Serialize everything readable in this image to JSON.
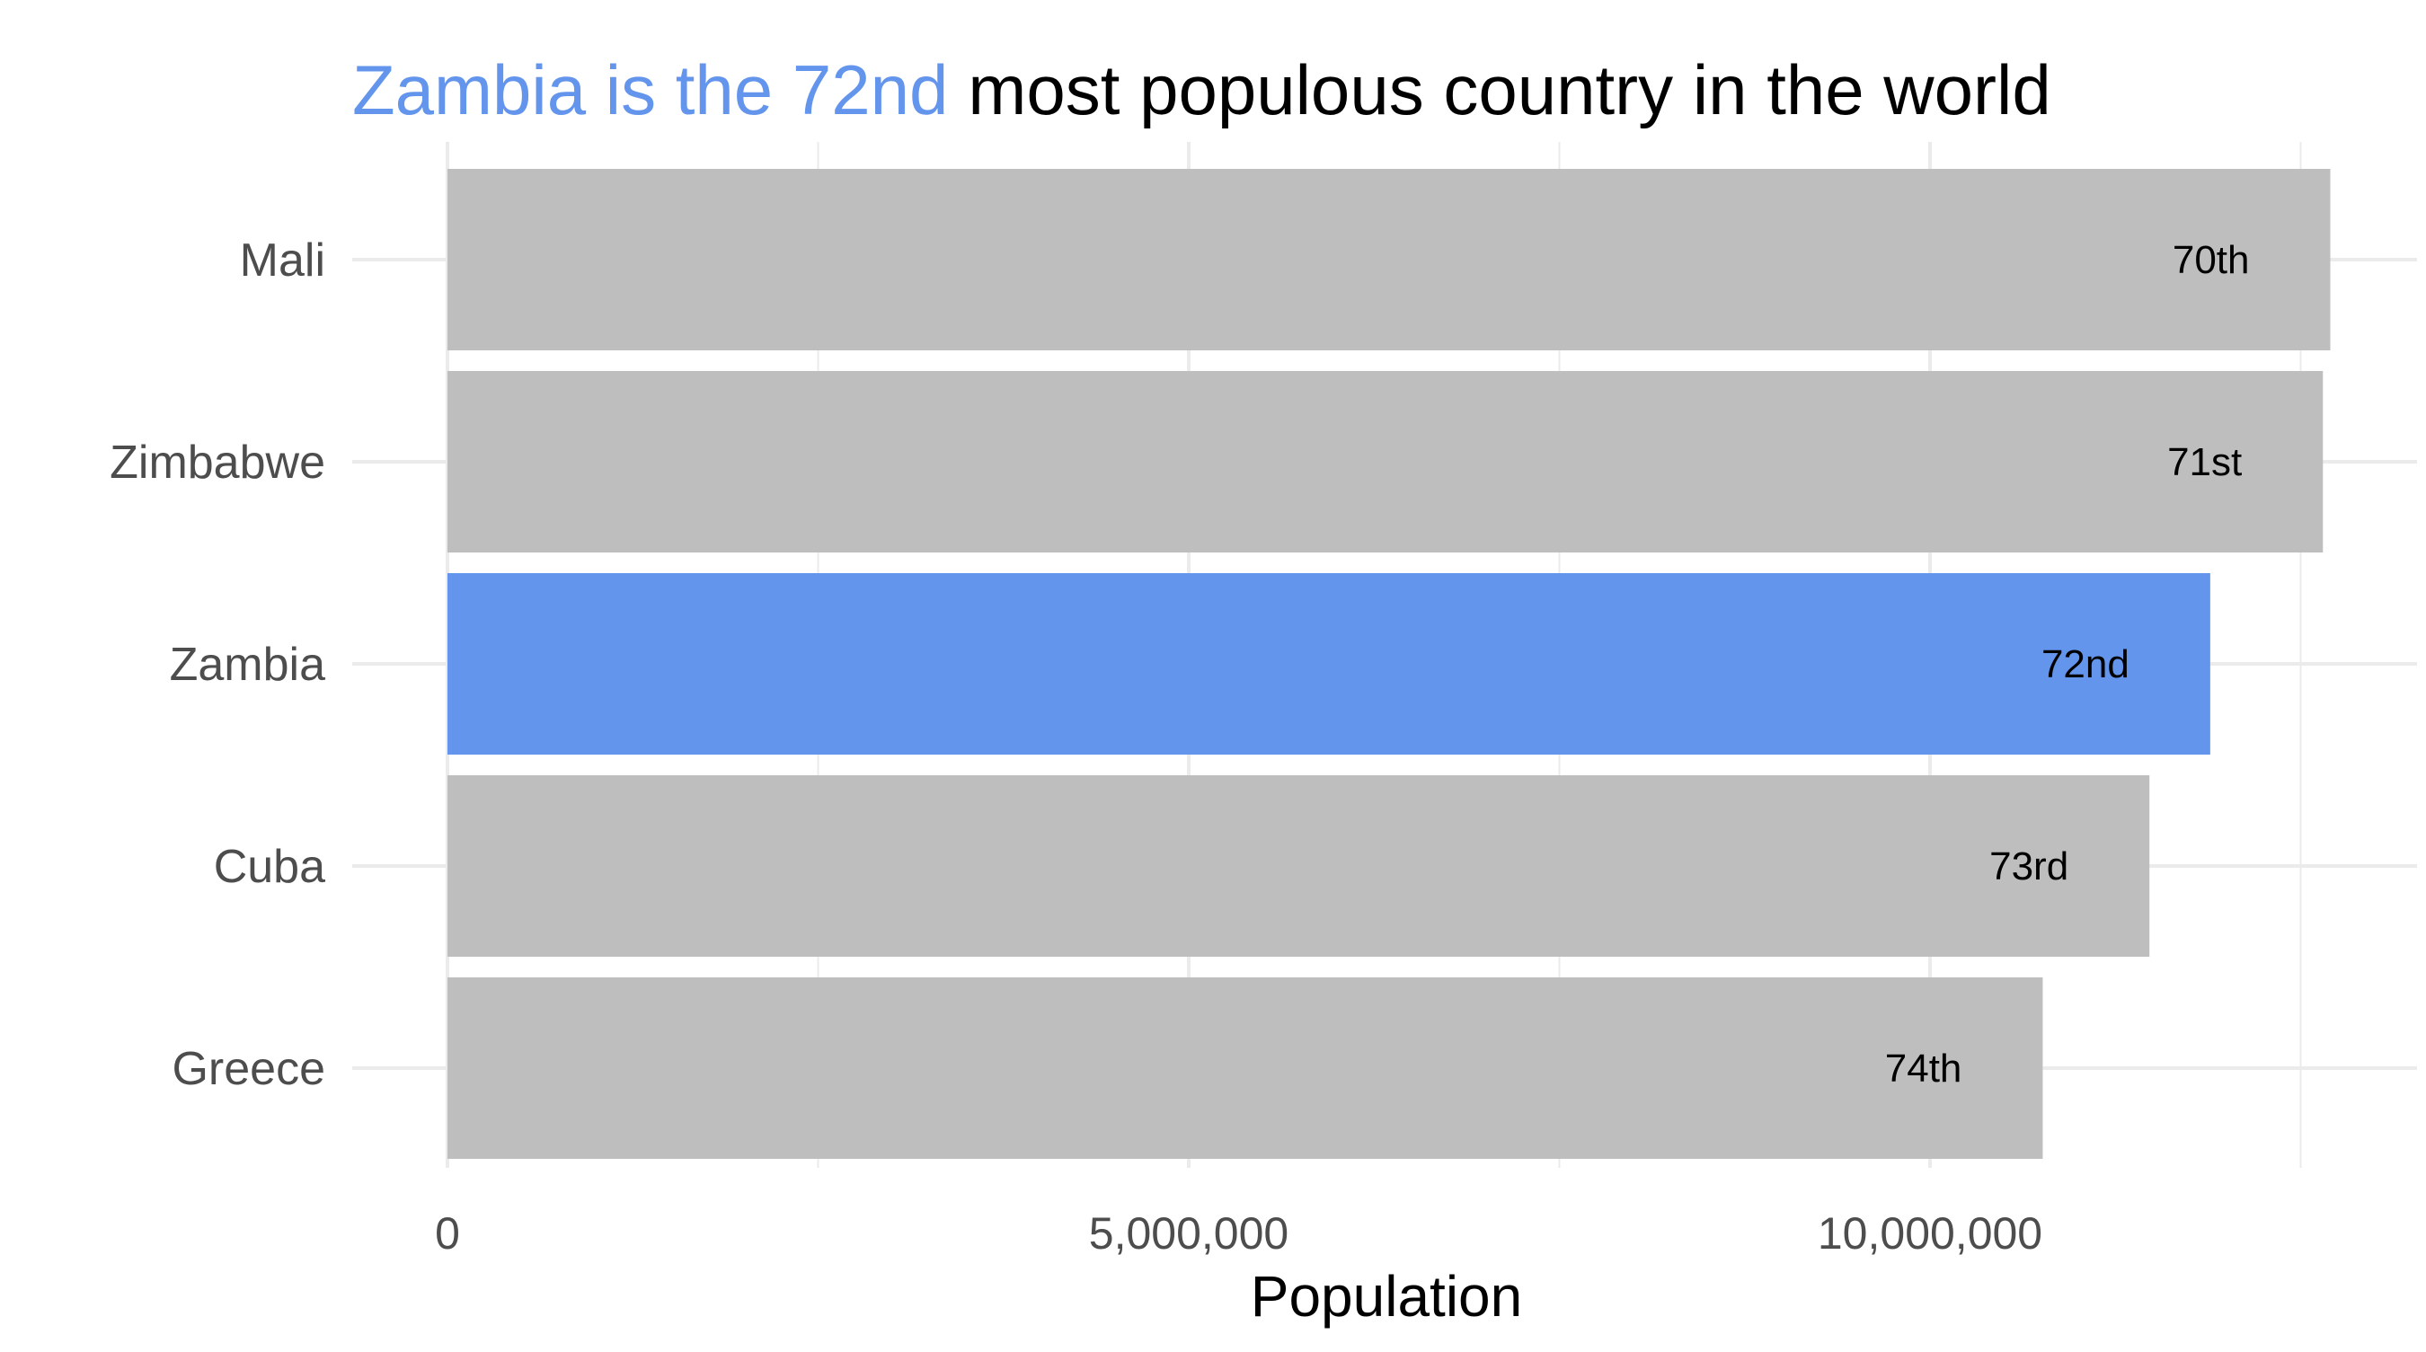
{
  "chart_data": {
    "type": "bar",
    "orientation": "horizontal",
    "title_highlight": "Zambia is the 72nd",
    "title_rest": "most populous country in the world",
    "xlabel": "Population",
    "ylabel": "",
    "categories": [
      "Mali",
      "Zimbabwe",
      "Zambia",
      "Cuba",
      "Greece"
    ],
    "values": [
      12700000,
      12650000,
      11890000,
      11480000,
      10760000
    ],
    "rank_labels": [
      "70th",
      "71st",
      "72nd",
      "73rd",
      "74th"
    ],
    "highlight_index": 2,
    "xlim": [
      0,
      13000000
    ],
    "x_ticks": [
      0,
      5000000,
      10000000
    ],
    "x_tick_labels": [
      "0",
      "5,000,000",
      "10,000,000"
    ],
    "x_minor_ticks": [
      2500000,
      7500000,
      12500000
    ],
    "grid": true,
    "legend": "none",
    "colors": {
      "highlight": "#6495ED",
      "bar": "#BEBEBE",
      "title_rest": "#000000",
      "axis_text": "#4D4D4D",
      "grid": "#EBEBEB",
      "label_text": "#000000"
    }
  }
}
